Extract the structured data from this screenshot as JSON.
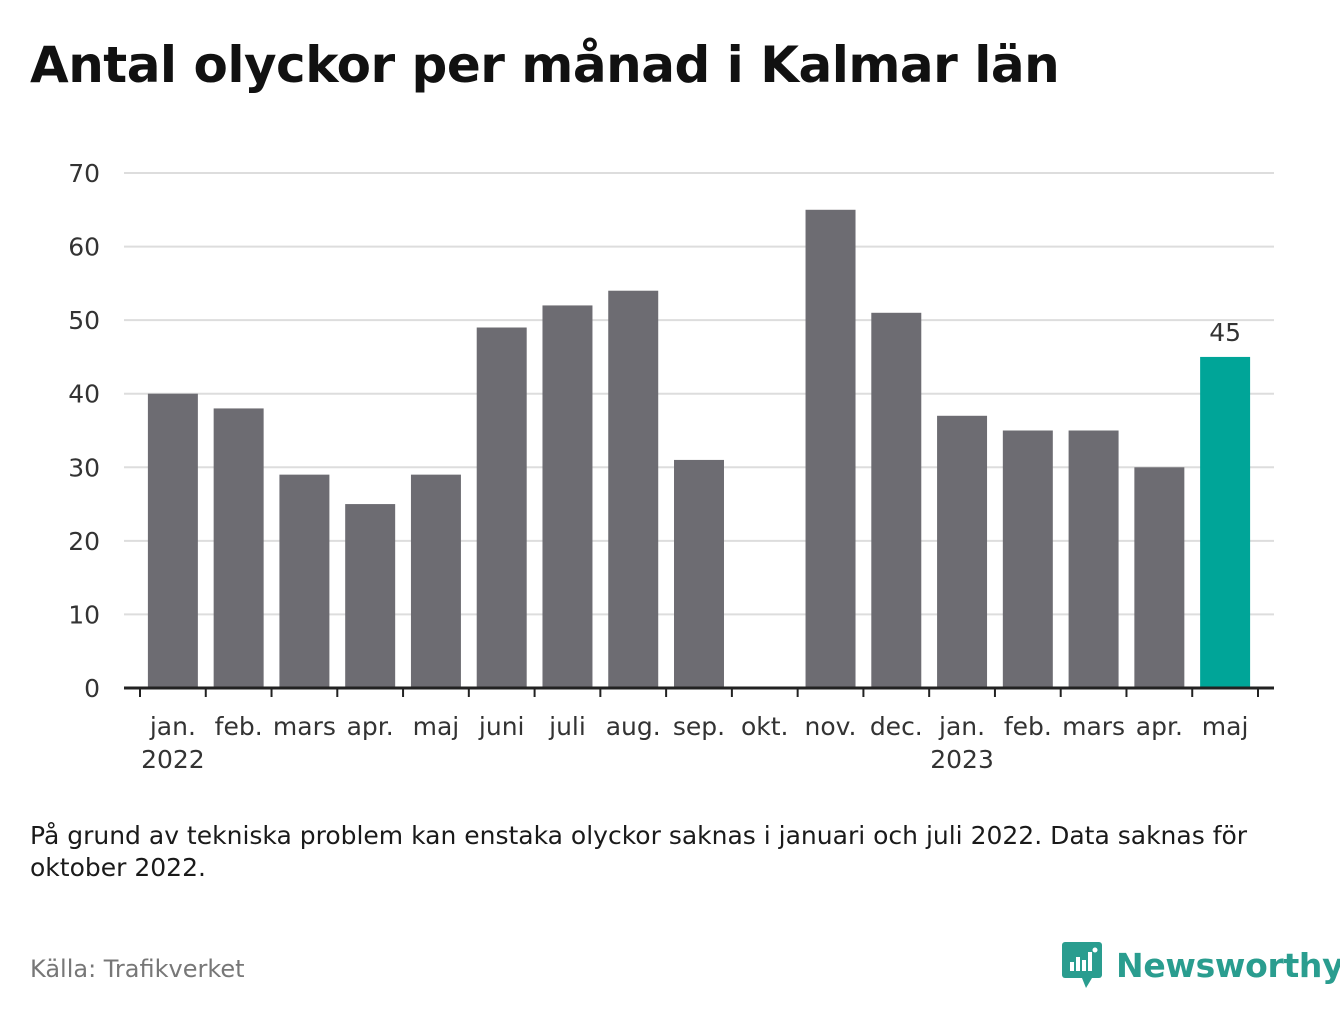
{
  "title": "Antal olyckor per månad i Kalmar län",
  "note": "På grund av tekniska problem kan enstaka olyckor saknas i januari och juli 2022. Data saknas för oktober 2022.",
  "source": "Källa: Trafikverket",
  "brand": {
    "name": "Newsworthy",
    "color": "#2a9d8f",
    "icon": "bar-chart-speech-bubble-icon"
  },
  "colors": {
    "bar": "#6d6c72",
    "highlight": "#00a598",
    "grid": "#dddddd",
    "axis": "#222222"
  },
  "chart_data": {
    "type": "bar",
    "title": "Antal olyckor per månad i Kalmar län",
    "xlabel": "",
    "ylabel": "",
    "ylim": [
      0,
      70
    ],
    "yticks": [
      0,
      10,
      20,
      30,
      40,
      50,
      60,
      70
    ],
    "grid": true,
    "categories": [
      "jan.",
      "feb.",
      "mars",
      "apr.",
      "maj",
      "juni",
      "juli",
      "aug.",
      "sep.",
      "okt.",
      "nov.",
      "dec.",
      "jan.",
      "feb.",
      "mars",
      "apr.",
      "maj"
    ],
    "year_labels": [
      {
        "index": 0,
        "label": "2022"
      },
      {
        "index": 12,
        "label": "2023"
      }
    ],
    "values": [
      40,
      38,
      29,
      25,
      29,
      49,
      52,
      54,
      31,
      null,
      65,
      51,
      37,
      35,
      35,
      30,
      45
    ],
    "highlight_index": 16,
    "data_labels": [
      {
        "index": 16,
        "label": "45"
      }
    ]
  }
}
